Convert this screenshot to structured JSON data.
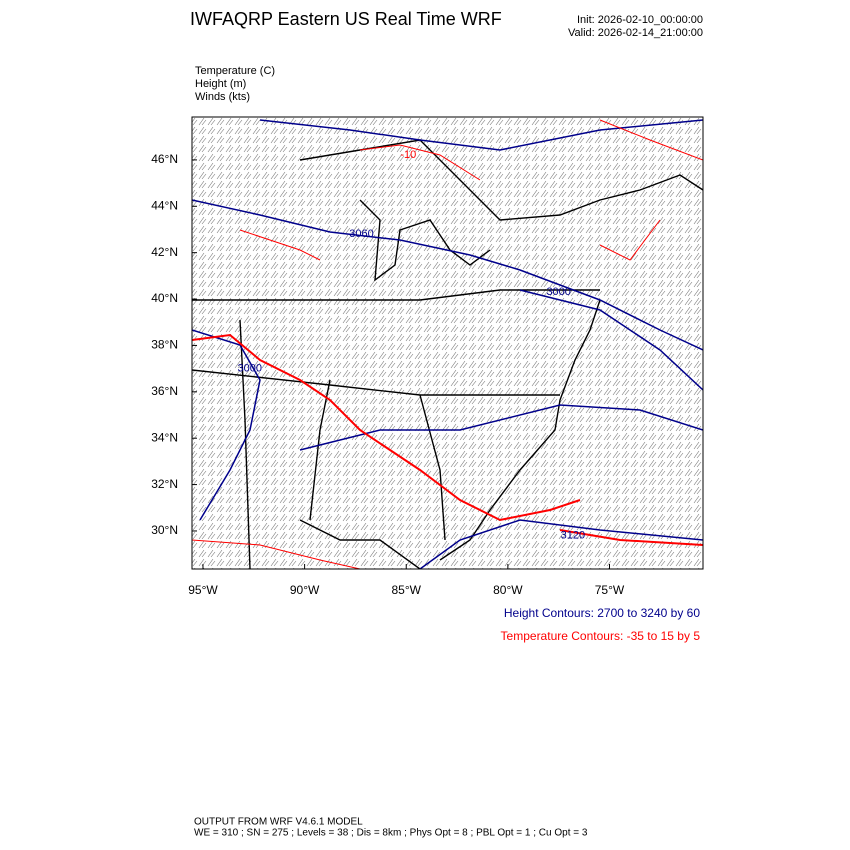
{
  "header": {
    "title": "IWFAQRP Eastern US Real Time WRF",
    "init": "Init: 2026-02-10_00:00:00",
    "valid": "Valid: 2026-02-14_21:00:00"
  },
  "legend": [
    "Temperature   (C)",
    "Height   (m)",
    "Winds   (kts)"
  ],
  "map": {
    "latlim": [
      28.36,
      47.85
    ],
    "lonlim": [
      -95.54,
      -70.4
    ],
    "lat_ticks": [
      {
        "value": 30,
        "label": "30°N"
      },
      {
        "value": 32,
        "label": "32°N"
      },
      {
        "value": 34,
        "label": "34°N"
      },
      {
        "value": 36,
        "label": "36°N"
      },
      {
        "value": 38,
        "label": "38°N"
      },
      {
        "value": 40,
        "label": "40°N"
      },
      {
        "value": 42,
        "label": "42°N"
      },
      {
        "value": 44,
        "label": "44°N"
      },
      {
        "value": 46,
        "label": "46°N"
      }
    ],
    "lon_ticks": [
      {
        "value": -95,
        "label": "95°W"
      },
      {
        "value": -90,
        "label": "90°W"
      },
      {
        "value": -85,
        "label": "85°W"
      },
      {
        "value": -80,
        "label": "80°W"
      },
      {
        "value": -75,
        "label": "75°W"
      }
    ],
    "contour_labels": [
      {
        "text": "3060",
        "lat": 42.8,
        "lon": -87.2,
        "color": "#00008b"
      },
      {
        "text": "3000",
        "lat": 40.3,
        "lon": -77.5,
        "color": "#00008b"
      },
      {
        "text": "3120",
        "lat": 29.8,
        "lon": -76.8,
        "color": "#00008b"
      },
      {
        "text": "3000",
        "lat": 37.0,
        "lon": -92.7,
        "color": "#00008b"
      },
      {
        "text": "-10",
        "lat": 46.2,
        "lon": -84.9,
        "color": "#ff0000"
      }
    ]
  },
  "contour_info": {
    "height": "Height Contours: 2700 to 3240 by 60",
    "temperature": "Temperature Contours: -35 to 15 by 5"
  },
  "footer": {
    "line1": "OUTPUT FROM WRF V4.6.1 MODEL",
    "line2": "WE = 310 ; SN = 275 ; Levels = 38 ; Dis = 8km ; Phys Opt = 8 ; PBL Opt = 1 ; Cu Opt = 3"
  }
}
